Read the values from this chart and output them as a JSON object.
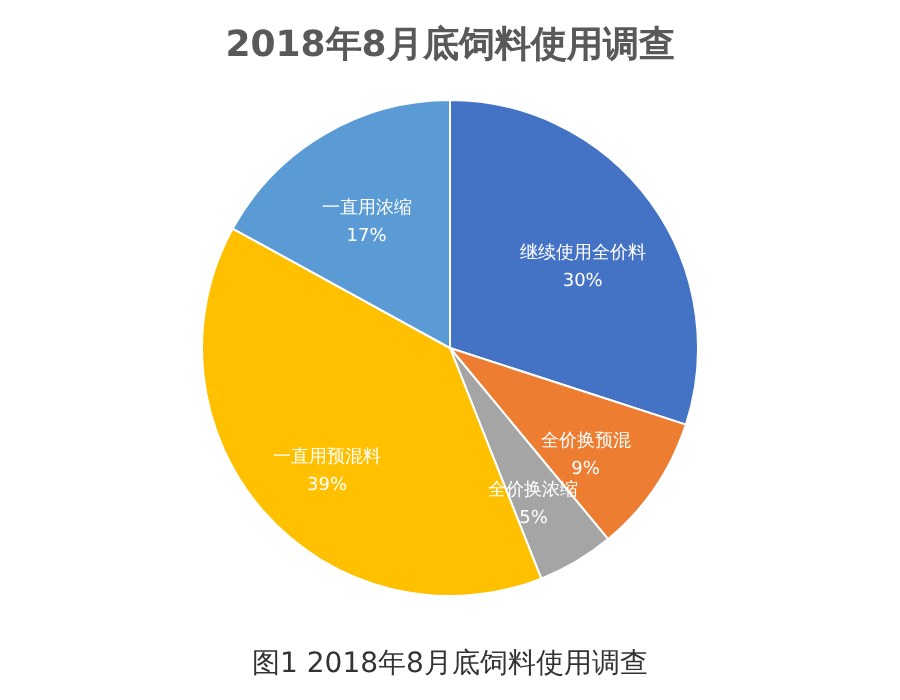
{
  "chart_data": {
    "type": "pie",
    "title": "2018年8月底饲料使用调查",
    "categories": [
      "继续使用全价料",
      "全价换预混",
      "全价换浓缩",
      "一直用预混料",
      "一直用浓缩"
    ],
    "values": [
      30,
      9,
      5,
      39,
      17
    ],
    "value_labels": [
      "30%",
      "9%",
      "5%",
      "39%",
      "17%"
    ],
    "colors": [
      "#4472c4",
      "#ed7d31",
      "#a5a5a5",
      "#ffc000",
      "#5b9bd5"
    ],
    "legend": false,
    "annotations": [
      "图1 2018年8月底饲料使用调查"
    ]
  }
}
